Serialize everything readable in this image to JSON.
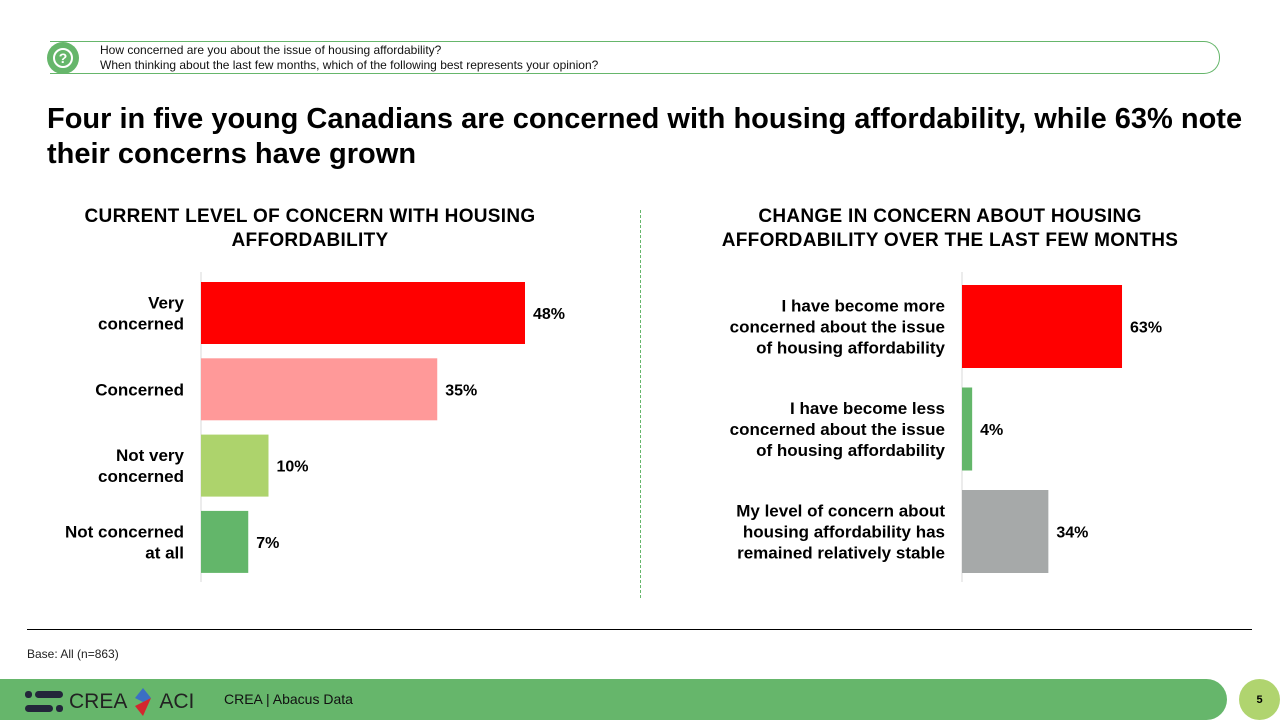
{
  "question": {
    "line1": "How concerned are you about the issue of housing affordability?",
    "line2": "When thinking about the last few months, which of the following best represents your opinion?"
  },
  "headline": "Four in five young Canadians are concerned with housing affordability, while 63% note their concerns have grown",
  "chart_data": [
    {
      "type": "bar",
      "orientation": "horizontal",
      "title": "CURRENT LEVEL OF CONCERN WITH HOUSING AFFORDABILITY",
      "categories": [
        "Very concerned",
        "Concerned",
        "Not very concerned",
        "Not concerned at all"
      ],
      "values": [
        48,
        35,
        10,
        7
      ],
      "labels": [
        "48%",
        "35%",
        "10%",
        "7%"
      ],
      "colors": [
        "#ff0000",
        "#ff9999",
        "#add36c",
        "#63b66a"
      ],
      "grid": false
    },
    {
      "type": "bar",
      "orientation": "horizontal",
      "title": "CHANGE IN CONCERN ABOUT HOUSING AFFORDABILITY OVER THE LAST FEW MONTHS",
      "categories": [
        "I have become more concerned about the issue of housing affordability",
        "I have become less concerned about the issue of housing affordability",
        "My level of concern about housing affordability has remained relatively stable"
      ],
      "values": [
        63,
        4,
        34
      ],
      "labels": [
        "63%",
        "4%",
        "34%"
      ],
      "colors": [
        "#ff0000",
        "#63b66a",
        "#a6a9a9"
      ],
      "grid": false
    }
  ],
  "footer": {
    "base": "Base: All (n=863)",
    "logo_left": "CREA",
    "logo_right": "ACI",
    "source": "CREA | Abacus Data",
    "page": "5"
  }
}
